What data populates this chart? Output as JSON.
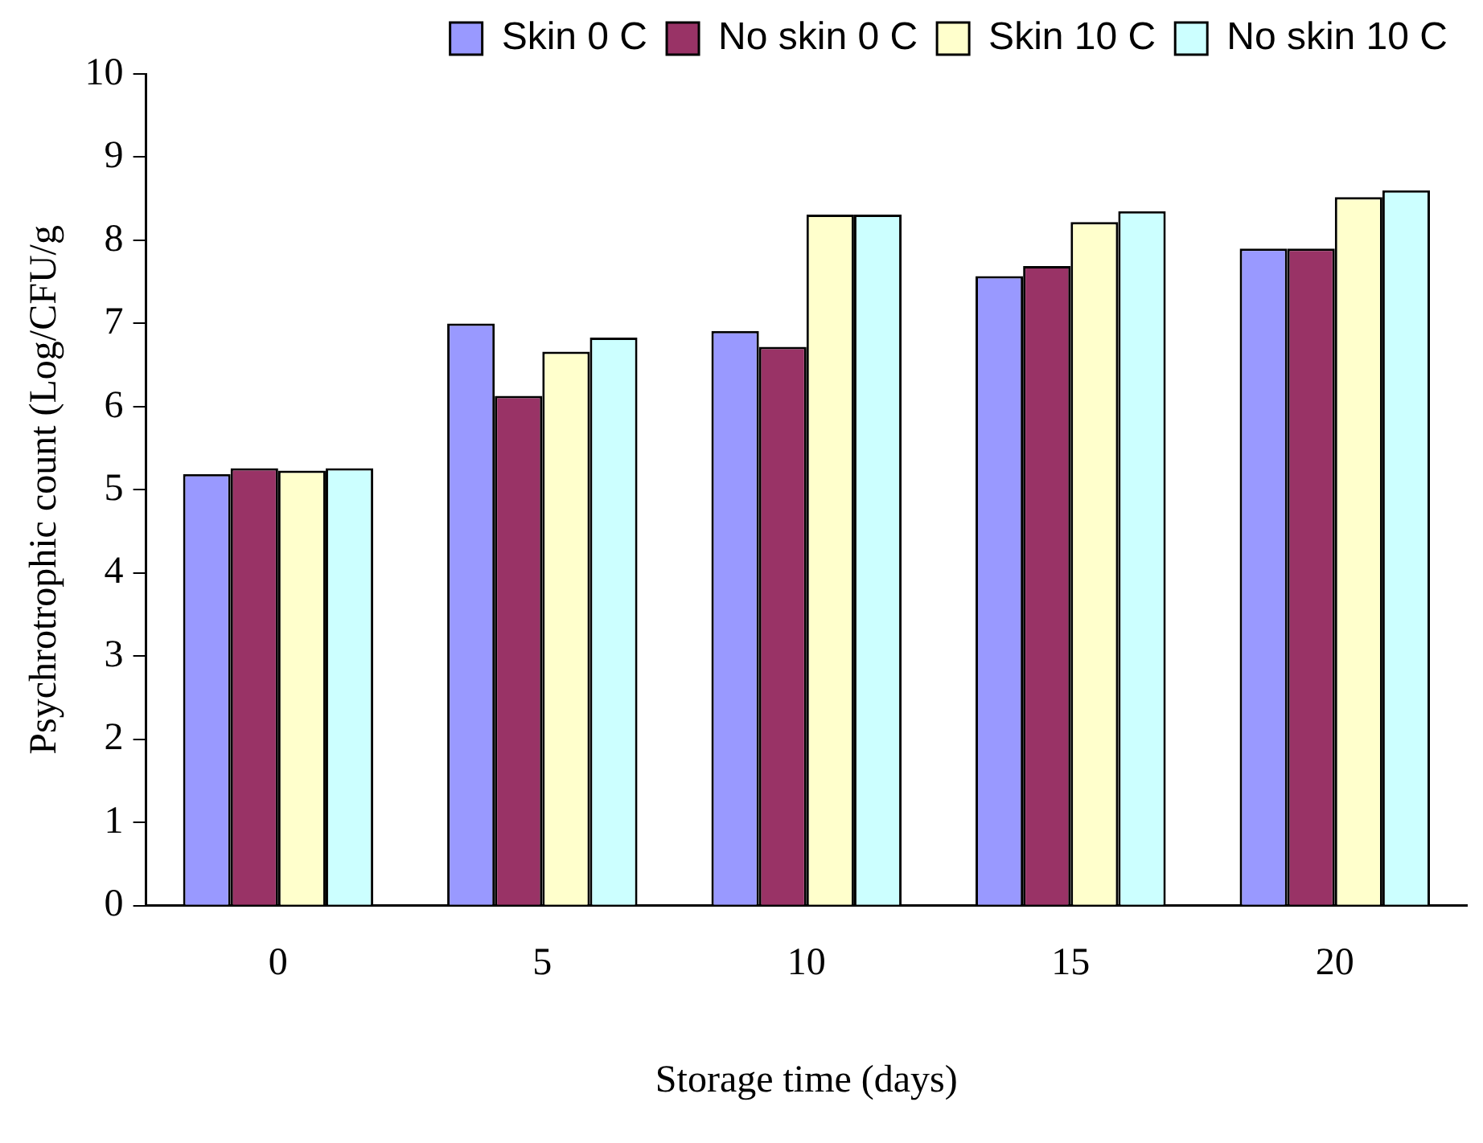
{
  "chart_data": {
    "type": "bar",
    "xlabel": "Storage time (days)",
    "ylabel": "Psychrotrophic count (Log/CFU/g",
    "categories": [
      "0",
      "5",
      "10",
      "15",
      "20"
    ],
    "series": [
      {
        "name": "Skin 0 C",
        "color": "#9999ff",
        "values": [
          5.19,
          7.0,
          6.91,
          7.57,
          7.9
        ]
      },
      {
        "name": "No skin 0 C",
        "color": "#993366",
        "values": [
          5.26,
          6.13,
          6.72,
          7.69,
          7.9
        ]
      },
      {
        "name": "Skin 10 C",
        "color": "#ffffcc",
        "values": [
          5.23,
          6.66,
          8.31,
          8.22,
          8.52
        ]
      },
      {
        "name": "No skin 10 C",
        "color": "#ccffff",
        "values": [
          5.26,
          6.83,
          8.31,
          8.35,
          8.6
        ]
      }
    ],
    "ylim": [
      0,
      10
    ],
    "yticks": [
      0,
      1,
      2,
      3,
      4,
      5,
      6,
      7,
      8,
      9,
      10
    ],
    "grid": false,
    "legend": "top right"
  }
}
